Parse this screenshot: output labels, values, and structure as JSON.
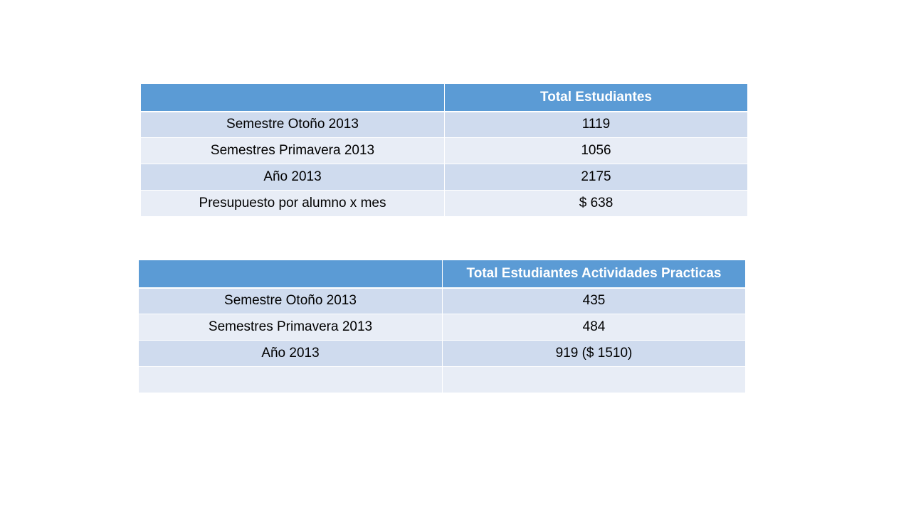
{
  "table_1": {
    "header": [
      "",
      "Total Estudiantes"
    ],
    "rows": [
      [
        "Semestre Otoño 2013",
        "1119"
      ],
      [
        "Semestres Primavera 2013",
        "1056"
      ],
      [
        "Año 2013",
        "2175"
      ],
      [
        "Presupuesto por alumno x mes",
        "$ 638"
      ]
    ]
  },
  "table_2": {
    "header": [
      "",
      "Total Estudiantes Actividades Practicas"
    ],
    "rows": [
      [
        "Semestre Otoño 2013",
        "435"
      ],
      [
        "Semestres Primavera 2013",
        "484"
      ],
      [
        "Año 2013",
        "919 ($ 1510)"
      ],
      [
        "",
        ""
      ]
    ]
  },
  "colors": {
    "header_bg": "#5b9bd5",
    "row_odd_bg": "#cfdbee",
    "row_even_bg": "#e8edf6"
  }
}
